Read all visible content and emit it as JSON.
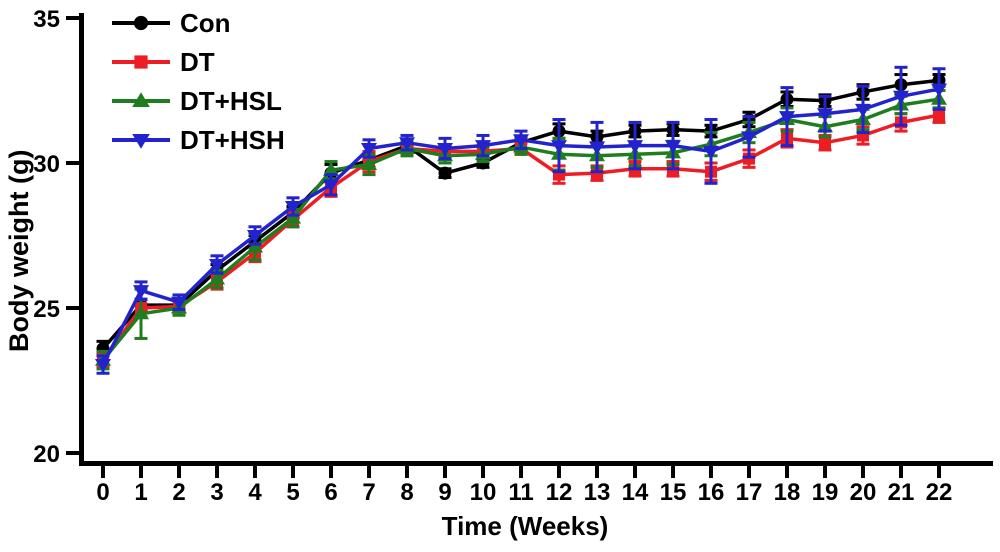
{
  "figure": {
    "background": "#ffffff"
  },
  "chart_data": {
    "type": "line",
    "title": "",
    "xlabel": "Time (Weeks)",
    "ylabel": "Body weight (g)",
    "x": [
      0,
      1,
      2,
      3,
      4,
      5,
      6,
      7,
      8,
      9,
      10,
      11,
      12,
      13,
      14,
      15,
      16,
      17,
      18,
      19,
      20,
      21,
      22
    ],
    "ylim": [
      20,
      35
    ],
    "yticks": [
      20,
      25,
      30,
      35
    ],
    "grid": false,
    "legend": {
      "position": "top-left-inside",
      "items": [
        "Con",
        "DT",
        "DT+HSL",
        "DT+HSH"
      ]
    },
    "series": [
      {
        "name": "Con",
        "color": "#000000",
        "marker": "circle",
        "values": [
          23.6,
          25.1,
          25.1,
          26.3,
          27.3,
          28.3,
          29.65,
          30.1,
          30.6,
          29.65,
          30.0,
          30.7,
          31.1,
          30.9,
          31.1,
          31.15,
          31.1,
          31.5,
          32.2,
          32.15,
          32.45,
          32.7,
          32.85
        ],
        "errors": [
          0.25,
          0.2,
          0.15,
          0.2,
          0.2,
          0.2,
          0.3,
          0.25,
          0.2,
          0.15,
          0.15,
          0.2,
          0.25,
          0.2,
          0.2,
          0.2,
          0.2,
          0.25,
          0.25,
          0.2,
          0.25,
          0.35,
          0.2
        ]
      },
      {
        "name": "DT",
        "color": "#ee1c23",
        "marker": "square",
        "values": [
          23.2,
          25.0,
          25.05,
          25.9,
          26.9,
          28.05,
          29.15,
          30.05,
          30.5,
          30.4,
          30.4,
          30.5,
          29.6,
          29.65,
          29.8,
          29.8,
          29.7,
          30.15,
          30.85,
          30.7,
          30.95,
          31.4,
          31.65
        ],
        "errors": [
          0.2,
          0.3,
          0.2,
          0.25,
          0.3,
          0.25,
          0.3,
          0.35,
          0.25,
          0.2,
          0.2,
          0.2,
          0.3,
          0.25,
          0.25,
          0.25,
          0.3,
          0.3,
          0.3,
          0.25,
          0.3,
          0.3,
          0.25
        ]
      },
      {
        "name": "DT+HSL",
        "color": "#1f7d1f",
        "marker": "triangle-up",
        "values": [
          23.2,
          24.8,
          25.0,
          26.0,
          27.1,
          28.1,
          29.75,
          29.95,
          30.5,
          30.25,
          30.3,
          30.55,
          30.3,
          30.25,
          30.3,
          30.35,
          30.65,
          31.05,
          31.5,
          31.25,
          31.5,
          32.0,
          32.2
        ],
        "errors": [
          0.3,
          0.85,
          0.25,
          0.3,
          0.45,
          0.3,
          0.3,
          0.35,
          0.25,
          0.25,
          0.25,
          0.25,
          0.55,
          0.4,
          0.4,
          0.4,
          0.4,
          0.35,
          0.4,
          0.35,
          0.35,
          0.3,
          0.3
        ]
      },
      {
        "name": "DT+HSH",
        "color": "#2323cd",
        "marker": "triangle-down",
        "values": [
          23.05,
          25.6,
          25.2,
          26.5,
          27.5,
          28.5,
          29.25,
          30.5,
          30.7,
          30.5,
          30.6,
          30.8,
          30.6,
          30.55,
          30.6,
          30.6,
          30.4,
          30.9,
          31.6,
          31.7,
          31.85,
          32.3,
          32.55
        ],
        "errors": [
          0.3,
          0.3,
          0.25,
          0.3,
          0.3,
          0.3,
          0.35,
          0.3,
          0.25,
          0.35,
          0.35,
          0.3,
          0.9,
          0.85,
          0.8,
          0.8,
          1.1,
          0.7,
          1.0,
          0.6,
          0.8,
          1.0,
          0.7
        ]
      }
    ]
  }
}
